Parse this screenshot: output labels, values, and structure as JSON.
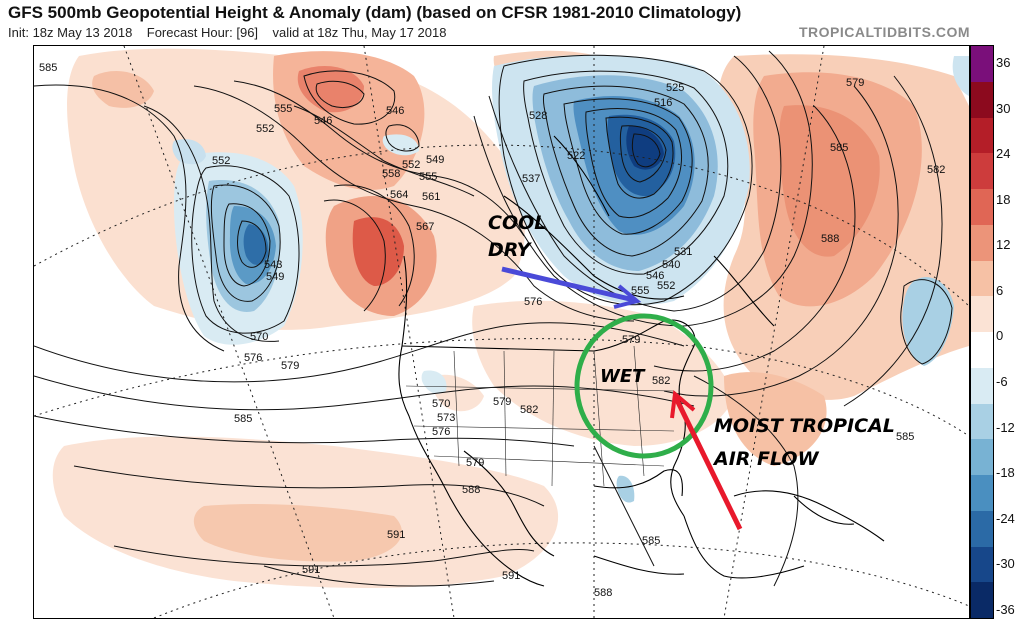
{
  "header": {
    "title": "GFS 500mb Geopotential Height & Anomaly (dam) (based on CFSR 1981-2010 Climatology)",
    "init": "Init: 18z May 13 2018",
    "forecast_hour": "Forecast Hour: [96]",
    "valid": "valid at 18z Thu, May 17 2018",
    "brand": "TROPICALTIDBITS.COM"
  },
  "colorbar": {
    "labels": [
      "36",
      "30",
      "24",
      "18",
      "12",
      "6",
      "0",
      "-6",
      "-12",
      "-18",
      "-24",
      "-30",
      "-36"
    ],
    "colors": [
      "#7a0f7a",
      "#8c0a1e",
      "#b41e28",
      "#cd3c3c",
      "#e06655",
      "#ec9479",
      "#f6c1a5",
      "#fbe3d5",
      "#ffffff",
      "#d9ebf3",
      "#a9d0e4",
      "#78b2d3",
      "#4a8fc0",
      "#2b6aa6",
      "#17478a",
      "#0a2a66"
    ]
  },
  "contour_labels": [
    "585",
    "555",
    "552",
    "546",
    "552",
    "549",
    "552",
    "558",
    "555",
    "561",
    "564",
    "567",
    "543",
    "549",
    "570",
    "576",
    "579",
    "546",
    "528",
    "525",
    "516",
    "522",
    "537",
    "531",
    "540",
    "546",
    "555",
    "552",
    "576",
    "579",
    "585",
    "588",
    "579",
    "582",
    "585",
    "570",
    "573",
    "576",
    "579",
    "582",
    "585",
    "588",
    "591",
    "591",
    "585",
    "588",
    "591",
    "579",
    "582"
  ],
  "annotations": {
    "cool_dry_1": "COOL",
    "cool_dry_2": "DRY",
    "wet": "WET",
    "moist_1": "MOIST TROPICAL",
    "moist_2": "AIR FLOW"
  },
  "annotation_colors": {
    "arrow_blue": "#4a4ad8",
    "arrow_red": "#e8192c",
    "circle_green": "#2fae4a"
  }
}
